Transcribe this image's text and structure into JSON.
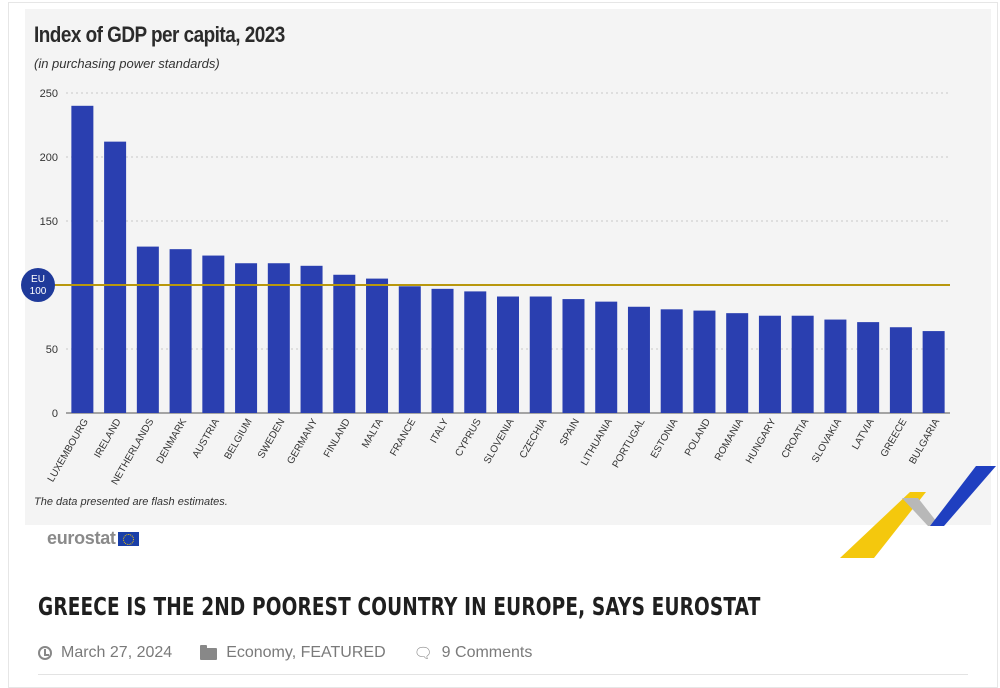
{
  "chart_data": {
    "type": "bar",
    "title": "Index of GDP per capita, 2023",
    "subtitle": "(in purchasing power standards)",
    "footnote": "The data presented are flash estimates.",
    "categories": [
      "LUXEMBOURG",
      "IRELAND",
      "NETHERLANDS",
      "DENMARK",
      "AUSTRIA",
      "BELGIUM",
      "SWEDEN",
      "GERMANY",
      "FINLAND",
      "MALTA",
      "FRANCE",
      "ITALY",
      "CYPRUS",
      "SLOVENIA",
      "CZECHIA",
      "SPAIN",
      "LITHUANIA",
      "PORTUGAL",
      "ESTONIA",
      "POLAND",
      "ROMANIA",
      "HUNGARY",
      "CROATIA",
      "SLOVAKIA",
      "LATVIA",
      "GREECE",
      "BULGARIA"
    ],
    "values": [
      240,
      212,
      130,
      128,
      123,
      117,
      117,
      115,
      108,
      105,
      99,
      97,
      95,
      91,
      91,
      89,
      87,
      83,
      81,
      80,
      78,
      76,
      76,
      73,
      71,
      67,
      64
    ],
    "yticks": [
      0,
      50,
      100,
      150,
      200,
      250
    ],
    "ytick_labels": [
      "0",
      "50",
      "",
      "150",
      "200",
      "250"
    ],
    "ylim": [
      0,
      250
    ],
    "reference_line": {
      "value": 100,
      "badge_line1": "EU",
      "badge_line2": "100"
    },
    "grid": "dotted horizontal",
    "colors": {
      "bar": "#2a3fb0",
      "reference": "#b8970e",
      "badge": "#1f3a9a"
    }
  },
  "source_logo": {
    "text": "eurostat"
  },
  "article": {
    "headline": "GREECE IS THE 2ND POOREST COUNTRY IN EUROPE, SAYS EUROSTAT",
    "date": "March 27, 2024",
    "categories": "Economy, FEATURED",
    "comments": "9 Comments",
    "icons": {
      "date": "clock-icon",
      "categories": "folder-icon",
      "comments": "comments-icon"
    }
  }
}
